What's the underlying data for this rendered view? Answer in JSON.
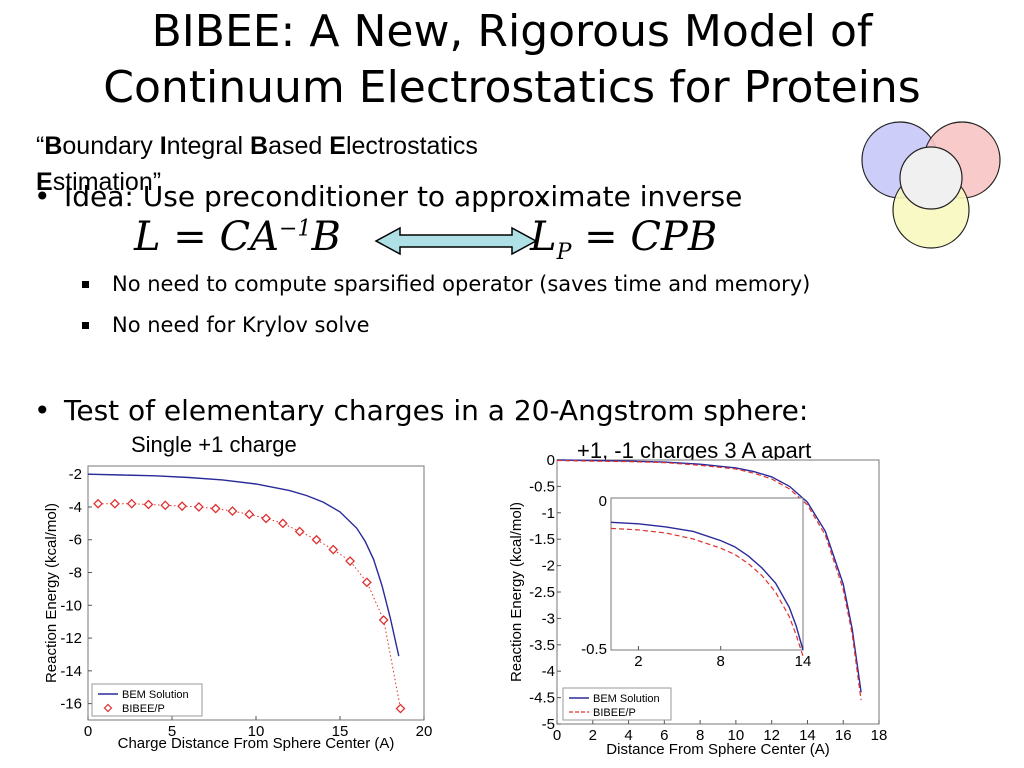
{
  "slide": {
    "title_line1": "BIBEE: A New, Rigorous Model of",
    "title_line2": "Continuum Electrostatics for Proteins",
    "subtitle": {
      "open_quote": "“",
      "parts": [
        {
          "bold": "B",
          "rest": "oundary "
        },
        {
          "bold": "I",
          "rest": "ntegral "
        },
        {
          "bold": "B",
          "rest": "ased "
        },
        {
          "bold": "E",
          "rest": "lectrostatics"
        },
        {
          "bold": "E",
          "rest": "stimation"
        }
      ],
      "close_quote": "”"
    },
    "bullet_idea": "Idea: Use preconditioner to approximate inverse",
    "subbullets": [
      "No need to compute sparsified operator (saves time and memory)",
      "No need for Krylov solve"
    ],
    "bullet_test": "Test of elementary charges in a 20-Angstrom sphere:",
    "bullet_char": "•",
    "venn_colors": [
      "#c8c8f8",
      "#f8c4c4",
      "#f8f8c0",
      "#f0f0f0"
    ]
  },
  "chart_data": [
    {
      "type": "scatter",
      "title": "Single +1 charge",
      "xlabel": "Charge Distance From Sphere Center (A)",
      "ylabel": "Reaction Energy (kcal/mol)",
      "xlim": [
        0,
        20
      ],
      "ylim": [
        -17,
        -1.5
      ],
      "xticks": [
        "0",
        "5",
        "10",
        "15",
        "20"
      ],
      "yticks": [
        "-2",
        "-4",
        "-6",
        "-8",
        "-10",
        "-12",
        "-14",
        "-16"
      ],
      "legend_position": "bottom-left",
      "series": [
        {
          "name": "BEM Solution",
          "style": "solid-line",
          "color": "#2a2a9a",
          "x": [
            0,
            2,
            4,
            6,
            8,
            10,
            12,
            13,
            14,
            15,
            16,
            16.5,
            17,
            17.5,
            18,
            18.5
          ],
          "y": [
            -2.0,
            -2.05,
            -2.1,
            -2.2,
            -2.35,
            -2.6,
            -3.0,
            -3.3,
            -3.7,
            -4.3,
            -5.3,
            -6.1,
            -7.2,
            -8.8,
            -10.8,
            -13.1
          ]
        },
        {
          "name": "BIBEE/P",
          "style": "diamond-dotted",
          "color": "#e03030",
          "x": [
            0.6,
            1.6,
            2.6,
            3.6,
            4.6,
            5.6,
            6.6,
            7.6,
            8.6,
            9.6,
            10.6,
            11.6,
            12.6,
            13.6,
            14.6,
            15.6,
            16.6,
            17.6,
            18.6
          ],
          "y": [
            -3.8,
            -3.8,
            -3.8,
            -3.85,
            -3.9,
            -3.95,
            -4.0,
            -4.1,
            -4.25,
            -4.45,
            -4.7,
            -5.0,
            -5.5,
            -6.0,
            -6.6,
            -7.3,
            -8.6,
            -10.9,
            -16.3
          ]
        }
      ]
    },
    {
      "type": "line",
      "title": "+1, -1 charges 3 A apart",
      "xlabel": "Distance From Sphere Center (A)",
      "ylabel": "Reaction Energy (kcal/mol)",
      "xlim": [
        0,
        18
      ],
      "ylim": [
        -5,
        0
      ],
      "xticks": [
        "0",
        "2",
        "4",
        "6",
        "8",
        "10",
        "12",
        "14",
        "16",
        "18"
      ],
      "yticks": [
        "0",
        "-0.5",
        "-1",
        "-1.5",
        "-2",
        "-2.5",
        "-3",
        "-3.5",
        "-4",
        "-4.5",
        "-5"
      ],
      "legend_position": "bottom-left",
      "series": [
        {
          "name": "BEM Solution",
          "style": "solid-line",
          "color": "#2a2a9a",
          "x": [
            0,
            2,
            4,
            6,
            8,
            10,
            11,
            12,
            13,
            14,
            15,
            16,
            16.5,
            17
          ],
          "y": [
            -0.0,
            -0.01,
            -0.02,
            -0.04,
            -0.08,
            -0.15,
            -0.22,
            -0.32,
            -0.5,
            -0.8,
            -1.35,
            -2.35,
            -3.2,
            -4.4
          ]
        },
        {
          "name": "BIBEE/P",
          "style": "dashed-line",
          "color": "#e03030",
          "x": [
            0,
            2,
            4,
            6,
            8,
            10,
            11,
            12,
            13,
            14,
            15,
            16,
            16.5,
            17
          ],
          "y": [
            -0.01,
            -0.02,
            -0.03,
            -0.05,
            -0.1,
            -0.17,
            -0.25,
            -0.36,
            -0.55,
            -0.85,
            -1.42,
            -2.45,
            -3.3,
            -4.55
          ]
        }
      ],
      "inset": {
        "xticks": [
          "2",
          "8",
          "14"
        ],
        "yticks": [
          "0",
          "-0.5"
        ],
        "xlim": [
          0,
          14
        ],
        "ylim": [
          -0.5,
          0
        ],
        "series": [
          {
            "name": "BEM Solution",
            "color": "#2a2a9a",
            "style": "solid-line",
            "x": [
              0,
              2,
              4,
              6,
              8,
              9,
              10,
              11,
              12,
              13,
              13.5,
              14
            ],
            "y": [
              -0.08,
              -0.085,
              -0.095,
              -0.11,
              -0.14,
              -0.16,
              -0.19,
              -0.23,
              -0.28,
              -0.36,
              -0.42,
              -0.5
            ]
          },
          {
            "name": "BIBEE/P",
            "color": "#e03030",
            "style": "dashed-line",
            "x": [
              0,
              2,
              4,
              6,
              8,
              9,
              10,
              11,
              12,
              13,
              13.5,
              14
            ],
            "y": [
              -0.1,
              -0.105,
              -0.115,
              -0.135,
              -0.165,
              -0.185,
              -0.215,
              -0.255,
              -0.31,
              -0.39,
              -0.45,
              -0.52
            ]
          }
        ]
      }
    }
  ]
}
